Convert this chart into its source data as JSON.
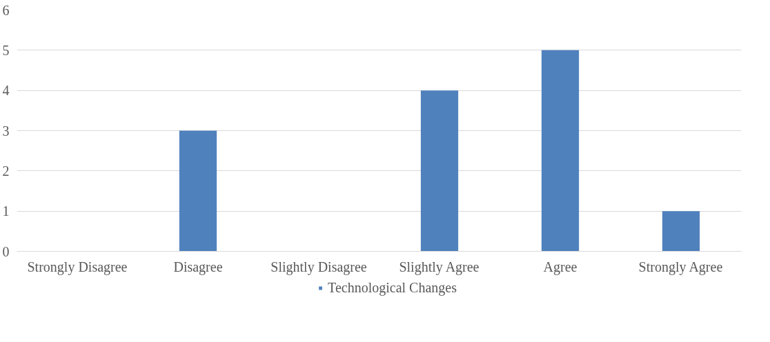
{
  "chart_data": {
    "type": "bar",
    "categories": [
      "Strongly Disagree",
      "Disagree",
      "Slightly Disagree",
      "Slightly Agree",
      "Agree",
      "Strongly Agree"
    ],
    "series": [
      {
        "name": "Technological Changes",
        "color": "#4f81bd",
        "values": [
          0,
          3,
          0,
          4,
          5,
          1
        ]
      }
    ],
    "ylim": [
      0,
      6
    ],
    "yticks": [
      0,
      1,
      2,
      3,
      4,
      5,
      6
    ],
    "grid": "y",
    "legend": "bottom"
  }
}
